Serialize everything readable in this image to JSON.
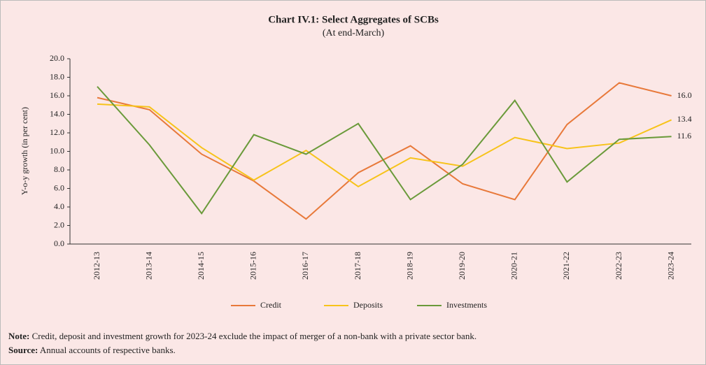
{
  "chart_data": {
    "type": "line",
    "title": "Chart IV.1: Select Aggregates of SCBs",
    "subtitle": "(At end-March)",
    "y_label": "Y-o-y growth (in per cent)",
    "categories": [
      "2012-13",
      "2013-14",
      "2014-15",
      "2015-16",
      "2016-17",
      "2017-18",
      "2018-19",
      "2019-20",
      "2020-21",
      "2021-22",
      "2022-23",
      "2023-24"
    ],
    "series": [
      {
        "name": "Credit",
        "color": "#e8793a",
        "values": [
          15.8,
          14.5,
          9.7,
          6.8,
          2.7,
          7.7,
          10.6,
          6.5,
          4.8,
          12.9,
          17.4,
          16.0
        ],
        "value_labels": [
          null,
          null,
          null,
          null,
          null,
          null,
          null,
          null,
          null,
          null,
          null,
          "16.0"
        ]
      },
      {
        "name": "Deposits",
        "color": "#f7c31a",
        "values": [
          15.1,
          14.8,
          10.4,
          6.9,
          10.1,
          6.2,
          9.3,
          8.4,
          11.5,
          10.3,
          10.9,
          13.4
        ],
        "value_labels": [
          null,
          null,
          null,
          null,
          null,
          null,
          null,
          null,
          null,
          null,
          null,
          "13.4"
        ]
      },
      {
        "name": "Investments",
        "color": "#6a9a3a",
        "values": [
          17.0,
          10.7,
          3.3,
          11.8,
          9.7,
          13.0,
          4.8,
          8.6,
          15.5,
          6.7,
          11.3,
          11.6
        ],
        "value_labels": [
          null,
          null,
          null,
          null,
          null,
          null,
          null,
          null,
          null,
          null,
          null,
          "11.6"
        ]
      }
    ],
    "ylim": [
      0,
      20
    ],
    "yticks": [
      {
        "value": 0,
        "label": "0.0"
      },
      {
        "value": 2,
        "label": "2.0"
      },
      {
        "value": 4,
        "label": "4.0"
      },
      {
        "value": 6,
        "label": "6.0"
      },
      {
        "value": 8,
        "label": "8.0"
      },
      {
        "value": 10,
        "label": "10.0"
      },
      {
        "value": 12,
        "label": "12.0"
      },
      {
        "value": 14,
        "label": "14.0"
      },
      {
        "value": 16,
        "label": "16.0"
      },
      {
        "value": 18,
        "label": "18.0"
      },
      {
        "value": 20,
        "label": "20.0"
      }
    ],
    "grid": false,
    "legend": "bottom",
    "notes": [
      {
        "label": "Note:",
        "text": " Credit, deposit and investment growth for 2023-24 exclude the impact of merger of a non-bank with a private sector bank."
      },
      {
        "label": "Source:",
        "text": " Annual accounts of respective banks."
      }
    ]
  }
}
